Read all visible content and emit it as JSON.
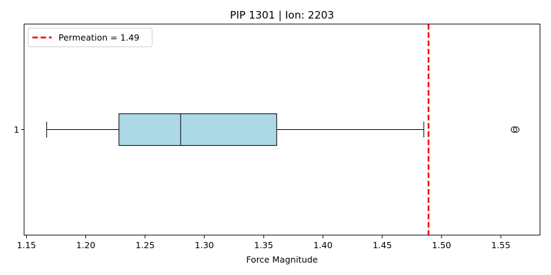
{
  "chart_data": {
    "type": "boxplot",
    "orientation": "horizontal",
    "title": "PIP 1301 | Ion: 2203",
    "xlabel": "Force Magnitude",
    "ylabel": "",
    "xlim": [
      1.148,
      1.583
    ],
    "x_ticks": [
      1.15,
      1.2,
      1.25,
      1.3,
      1.35,
      1.4,
      1.45,
      1.5,
      1.55
    ],
    "x_tick_labels": [
      "1.15",
      "1.20",
      "1.25",
      "1.30",
      "1.35",
      "1.40",
      "1.45",
      "1.50",
      "1.55"
    ],
    "y_tick_labels": [
      "1"
    ],
    "grid": false,
    "legend_position": "upper-left",
    "boxes": [
      {
        "label": "1",
        "whisker_low": 1.167,
        "q1": 1.228,
        "median": 1.28,
        "q3": 1.361,
        "whisker_high": 1.485,
        "outliers": [
          1.561,
          1.563
        ],
        "fill_color": "#add8e6"
      }
    ],
    "reference_line": {
      "value": 1.489,
      "label": "Permeation = 1.49",
      "color": "#ff0000",
      "style": "dashed"
    }
  }
}
